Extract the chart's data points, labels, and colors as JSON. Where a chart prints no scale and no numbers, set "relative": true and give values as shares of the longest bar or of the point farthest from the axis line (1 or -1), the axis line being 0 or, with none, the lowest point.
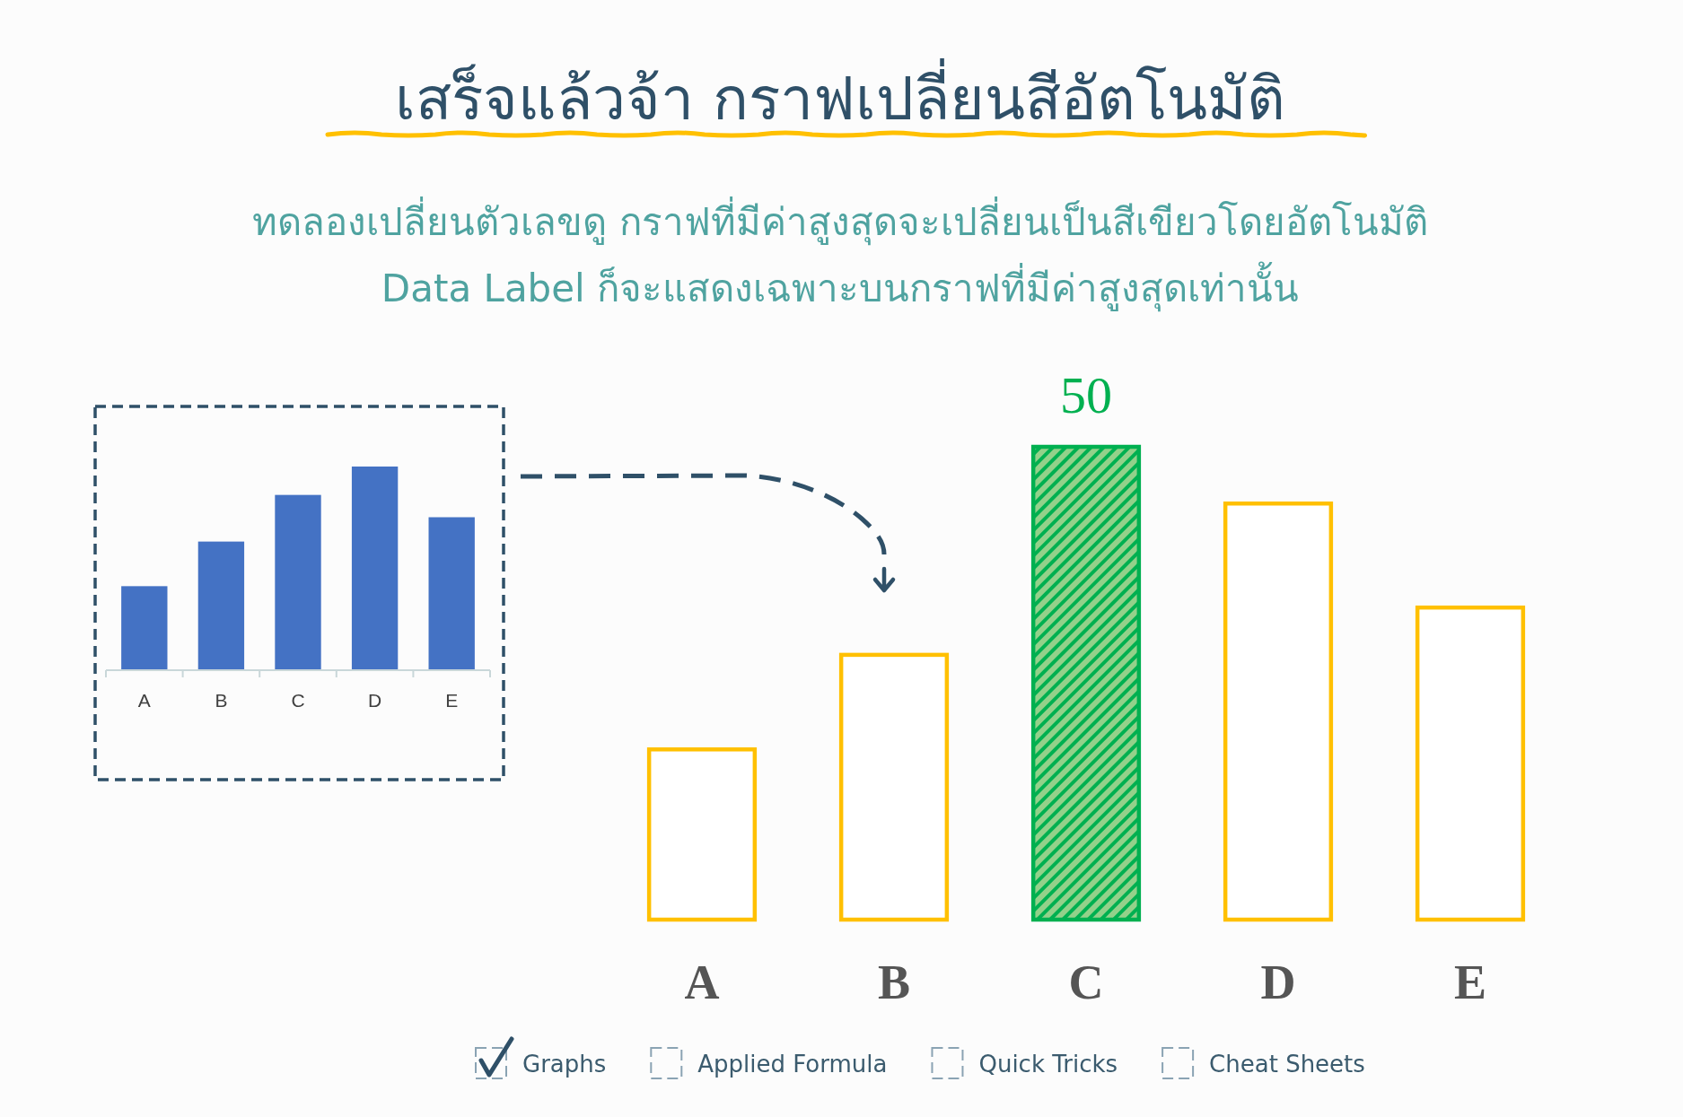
{
  "chart_data": [
    {
      "type": "other",
      "title": "เสร็จแล้วจ้า กราฟเปลี่ยนสีอัตโนมัติ",
      "subtitle": "ทดลองเปลี่ยนตัวเลขดู กราฟที่มีค่าสูงสุดจะเปลี่ยนเป็นสีเขียวโดยอัตโนมัติ\nData Label ก็จะแสดงเฉพาะบนกราฟที่มีค่าสูงสุดเท่านั้น",
      "annotations": [
        "Graphs",
        "Applied Formula",
        "Quick Tricks",
        "Cheat Sheets"
      ]
    },
    {
      "type": "bar",
      "relative": true,
      "categories": [
        "A",
        "B",
        "C",
        "D",
        "E"
      ],
      "values": [
        0.41,
        0.63,
        0.86,
        1,
        0.75
      ],
      "color": "#4472c4"
    },
    {
      "type": "bar",
      "categories": [
        "A",
        "B",
        "C",
        "D",
        "E"
      ],
      "values": [
        18,
        28,
        50,
        44,
        33
      ],
      "colors": [
        "#ffc000",
        "#ffc000",
        "#00b050",
        "#ffc000",
        "#ffc000"
      ],
      "value_labels": [
        null,
        null,
        "50",
        null,
        null
      ],
      "tick_labels": "x"
    }
  ]
}
